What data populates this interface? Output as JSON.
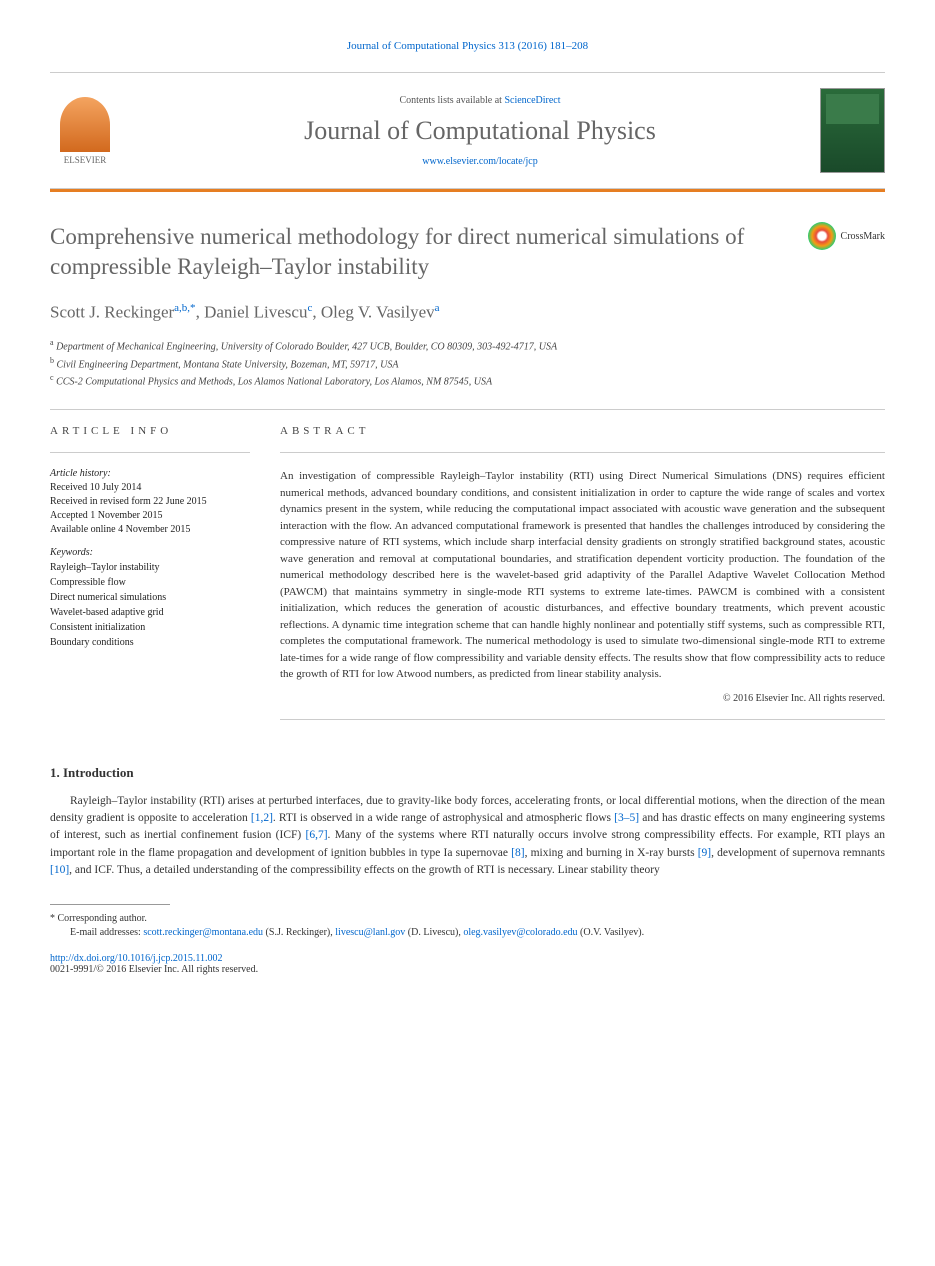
{
  "citation": "Journal of Computational Physics 313 (2016) 181–208",
  "header": {
    "contents_prefix": "Contents lists available at ",
    "contents_link": "ScienceDirect",
    "journal_name": "Journal of Computational Physics",
    "journal_url": "www.elsevier.com/locate/jcp",
    "publisher": "ELSEVIER"
  },
  "crossmark": "CrossMark",
  "title": "Comprehensive numerical methodology for direct numerical simulations of compressible Rayleigh–Taylor instability",
  "authors": [
    {
      "name": "Scott J. Reckinger",
      "sup": "a,b,*"
    },
    {
      "name": "Daniel Livescu",
      "sup": "c"
    },
    {
      "name": "Oleg V. Vasilyev",
      "sup": "a"
    }
  ],
  "affiliations": [
    {
      "sup": "a",
      "text": "Department of Mechanical Engineering, University of Colorado Boulder, 427 UCB, Boulder, CO 80309, 303-492-4717, USA"
    },
    {
      "sup": "b",
      "text": "Civil Engineering Department, Montana State University, Bozeman, MT, 59717, USA"
    },
    {
      "sup": "c",
      "text": "CCS-2 Computational Physics and Methods, Los Alamos National Laboratory, Los Alamos, NM 87545, USA"
    }
  ],
  "article_info": {
    "heading": "ARTICLE INFO",
    "history_label": "Article history:",
    "history": [
      "Received 10 July 2014",
      "Received in revised form 22 June 2015",
      "Accepted 1 November 2015",
      "Available online 4 November 2015"
    ],
    "keywords_label": "Keywords:",
    "keywords": [
      "Rayleigh–Taylor instability",
      "Compressible flow",
      "Direct numerical simulations",
      "Wavelet-based adaptive grid",
      "Consistent initialization",
      "Boundary conditions"
    ]
  },
  "abstract": {
    "heading": "ABSTRACT",
    "text": "An investigation of compressible Rayleigh–Taylor instability (RTI) using Direct Numerical Simulations (DNS) requires efficient numerical methods, advanced boundary conditions, and consistent initialization in order to capture the wide range of scales and vortex dynamics present in the system, while reducing the computational impact associated with acoustic wave generation and the subsequent interaction with the flow. An advanced computational framework is presented that handles the challenges introduced by considering the compressive nature of RTI systems, which include sharp interfacial density gradients on strongly stratified background states, acoustic wave generation and removal at computational boundaries, and stratification dependent vorticity production. The foundation of the numerical methodology described here is the wavelet-based grid adaptivity of the Parallel Adaptive Wavelet Collocation Method (PAWCM) that maintains symmetry in single-mode RTI systems to extreme late-times. PAWCM is combined with a consistent initialization, which reduces the generation of acoustic disturbances, and effective boundary treatments, which prevent acoustic reflections. A dynamic time integration scheme that can handle highly nonlinear and potentially stiff systems, such as compressible RTI, completes the computational framework. The numerical methodology is used to simulate two-dimensional single-mode RTI to extreme late-times for a wide range of flow compressibility and variable density effects. The results show that flow compressibility acts to reduce the growth of RTI for low Atwood numbers, as predicted from linear stability analysis.",
    "copyright": "© 2016 Elsevier Inc. All rights reserved."
  },
  "intro": {
    "heading": "1. Introduction",
    "paragraph": "Rayleigh–Taylor instability (RTI) arises at perturbed interfaces, due to gravity-like body forces, accelerating fronts, or local differential motions, when the direction of the mean density gradient is opposite to acceleration [1,2]. RTI is observed in a wide range of astrophysical and atmospheric flows [3–5] and has drastic effects on many engineering systems of interest, such as inertial confinement fusion (ICF) [6,7]. Many of the systems where RTI naturally occurs involve strong compressibility effects. For example, RTI plays an important role in the flame propagation and development of ignition bubbles in type Ia supernovae [8], mixing and burning in X-ray bursts [9], development of supernova remnants [10], and ICF. Thus, a detailed understanding of the compressibility effects on the growth of RTI is necessary. Linear stability theory",
    "refs": [
      "[1,2]",
      "[3–5]",
      "[6,7]",
      "[8]",
      "[9]",
      "[10]"
    ]
  },
  "footer": {
    "corresponding_label": "* Corresponding author.",
    "email_label": "E-mail addresses: ",
    "emails": [
      {
        "addr": "scott.reckinger@montana.edu",
        "who": "(S.J. Reckinger)"
      },
      {
        "addr": "livescu@lanl.gov",
        "who": "(D. Livescu)"
      },
      {
        "addr": "oleg.vasilyev@colorado.edu",
        "who": "(O.V. Vasilyev)"
      }
    ],
    "doi": "http://dx.doi.org/10.1016/j.jcp.2015.11.002",
    "issn": "0021-9991/© 2016 Elsevier Inc. All rights reserved."
  },
  "colors": {
    "link": "#0066cc",
    "accent": "#e67e22",
    "heading_gray": "#666666"
  }
}
